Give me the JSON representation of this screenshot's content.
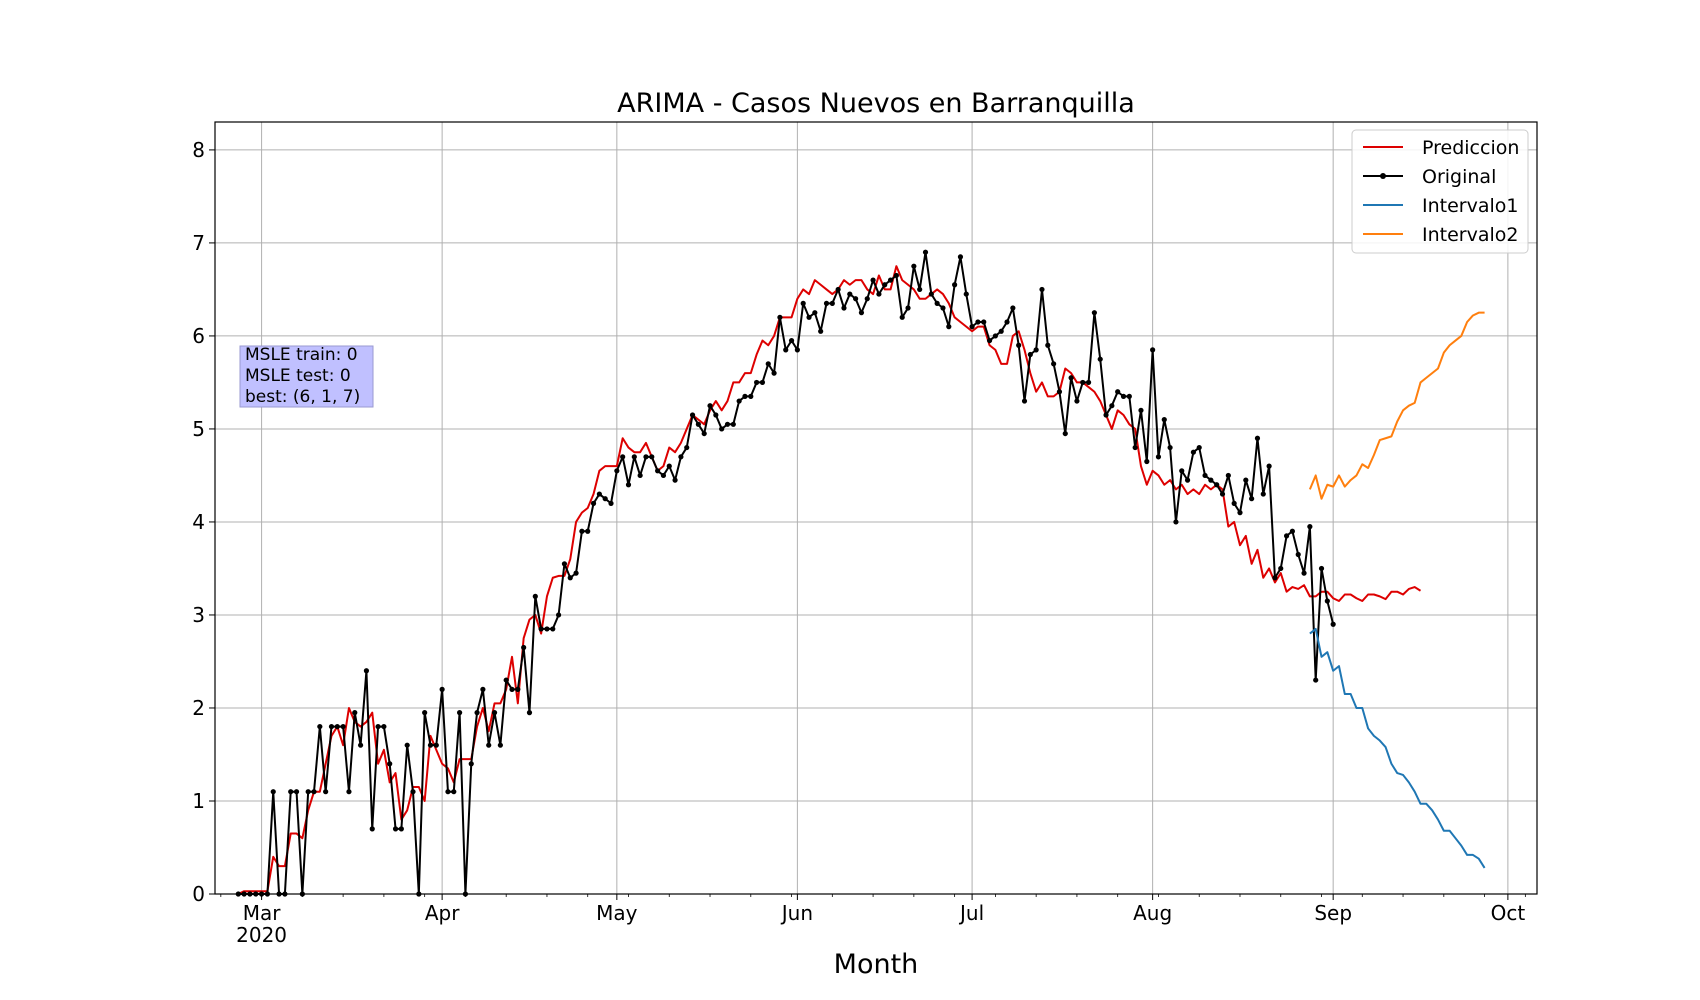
{
  "chart_data": {
    "type": "line",
    "title": "ARIMA - Casos Nuevos en Barranquilla",
    "xlabel": "Month",
    "ylabel": "",
    "x_start_date": "2020-02-26",
    "xlim": [
      "2020-02-22",
      "2020-10-06"
    ],
    "ylim": [
      0,
      8.3
    ],
    "grid": true,
    "legend_position": "top-right",
    "x_ticks": [
      {
        "date": "2020-03-01",
        "label": "Mar",
        "sublabel": "2020"
      },
      {
        "date": "2020-04-01",
        "label": "Apr",
        "sublabel": ""
      },
      {
        "date": "2020-05-01",
        "label": "May",
        "sublabel": ""
      },
      {
        "date": "2020-06-01",
        "label": "Jun",
        "sublabel": ""
      },
      {
        "date": "2020-07-01",
        "label": "Jul",
        "sublabel": ""
      },
      {
        "date": "2020-08-01",
        "label": "Aug",
        "sublabel": ""
      },
      {
        "date": "2020-09-01",
        "label": "Sep",
        "sublabel": ""
      },
      {
        "date": "2020-10-01",
        "label": "Oct",
        "sublabel": ""
      }
    ],
    "y_ticks": [
      0,
      1,
      2,
      3,
      4,
      5,
      6,
      7,
      8
    ],
    "annotation": {
      "lines": [
        "MSLE train: 0",
        "MSLE test: 0",
        "best: (6, 1, 7)"
      ],
      "background": "#c0c0ff"
    },
    "series": [
      {
        "name": "Prediccion",
        "color": "#dd0000",
        "marker": false,
        "x_start_date": "2020-02-26",
        "values": [
          0.0,
          0.03,
          0.03,
          0.03,
          0.03,
          0.03,
          0.4,
          0.3,
          0.3,
          0.65,
          0.65,
          0.6,
          0.9,
          1.1,
          1.1,
          1.4,
          1.7,
          1.8,
          1.6,
          2.0,
          1.85,
          1.8,
          1.85,
          1.95,
          1.4,
          1.55,
          1.2,
          1.3,
          0.8,
          0.9,
          1.15,
          1.15,
          1.0,
          1.7,
          1.55,
          1.4,
          1.35,
          1.2,
          1.45,
          1.45,
          1.45,
          1.8,
          2.0,
          1.75,
          2.05,
          2.05,
          2.2,
          2.55,
          2.05,
          2.75,
          2.95,
          3.0,
          2.8,
          3.2,
          3.4,
          3.42,
          3.42,
          3.6,
          4.0,
          4.1,
          4.15,
          4.3,
          4.55,
          4.6,
          4.6,
          4.6,
          4.9,
          4.8,
          4.75,
          4.75,
          4.85,
          4.7,
          4.55,
          4.6,
          4.8,
          4.75,
          4.85,
          5.0,
          5.15,
          5.1,
          5.05,
          5.2,
          5.3,
          5.2,
          5.3,
          5.5,
          5.5,
          5.6,
          5.6,
          5.8,
          5.95,
          5.9,
          6.0,
          6.2,
          6.2,
          6.2,
          6.4,
          6.5,
          6.45,
          6.6,
          6.55,
          6.5,
          6.45,
          6.5,
          6.6,
          6.55,
          6.6,
          6.6,
          6.5,
          6.45,
          6.65,
          6.5,
          6.5,
          6.75,
          6.6,
          6.55,
          6.5,
          6.4,
          6.4,
          6.45,
          6.5,
          6.45,
          6.35,
          6.2,
          6.15,
          6.1,
          6.05,
          6.1,
          6.1,
          5.9,
          5.85,
          5.7,
          5.7,
          6.0,
          6.05,
          5.85,
          5.6,
          5.4,
          5.5,
          5.35,
          5.35,
          5.4,
          5.65,
          5.6,
          5.5,
          5.5,
          5.45,
          5.4,
          5.3,
          5.15,
          5.0,
          5.2,
          5.15,
          5.05,
          5.0,
          4.6,
          4.4,
          4.55,
          4.5,
          4.4,
          4.45,
          4.35,
          4.4,
          4.3,
          4.35,
          4.3,
          4.4,
          4.35,
          4.4,
          4.35,
          3.95,
          4.0,
          3.75,
          3.85,
          3.55,
          3.7,
          3.4,
          3.5,
          3.35,
          3.45,
          3.25,
          3.3,
          3.28,
          3.32,
          3.2,
          3.2,
          3.25,
          3.25,
          3.18,
          3.15,
          3.22,
          3.22,
          3.18,
          3.15,
          3.22,
          3.22,
          3.2,
          3.17,
          3.25,
          3.25,
          3.22,
          3.28,
          3.3,
          3.26
        ]
      },
      {
        "name": "Original",
        "color": "#000000",
        "marker": true,
        "x_start_date": "2020-02-26",
        "values": [
          0.0,
          0.0,
          0.0,
          0.0,
          0.0,
          0.0,
          1.1,
          0.0,
          0.0,
          1.1,
          1.1,
          0.0,
          1.1,
          1.1,
          1.8,
          1.1,
          1.8,
          1.8,
          1.8,
          1.1,
          1.95,
          1.6,
          2.4,
          0.7,
          1.8,
          1.8,
          1.4,
          0.7,
          0.7,
          1.6,
          1.1,
          0.0,
          1.95,
          1.6,
          1.6,
          2.2,
          1.1,
          1.1,
          1.95,
          0.0,
          1.4,
          1.95,
          2.2,
          1.6,
          1.95,
          1.6,
          2.3,
          2.2,
          2.2,
          2.65,
          1.95,
          3.2,
          2.85,
          2.85,
          2.85,
          3.0,
          3.55,
          3.4,
          3.45,
          3.9,
          3.9,
          4.2,
          4.3,
          4.25,
          4.2,
          4.55,
          4.7,
          4.4,
          4.7,
          4.5,
          4.7,
          4.7,
          4.55,
          4.5,
          4.6,
          4.45,
          4.7,
          4.8,
          5.15,
          5.05,
          4.95,
          5.25,
          5.15,
          5.0,
          5.05,
          5.05,
          5.3,
          5.35,
          5.35,
          5.5,
          5.5,
          5.7,
          5.6,
          6.2,
          5.85,
          5.95,
          5.85,
          6.35,
          6.2,
          6.25,
          6.05,
          6.35,
          6.35,
          6.5,
          6.3,
          6.45,
          6.4,
          6.25,
          6.4,
          6.6,
          6.45,
          6.55,
          6.6,
          6.65,
          6.2,
          6.3,
          6.75,
          6.5,
          6.9,
          6.45,
          6.35,
          6.3,
          6.1,
          6.55,
          6.85,
          6.45,
          6.1,
          6.15,
          6.15,
          5.95,
          6.0,
          6.05,
          6.15,
          6.3,
          5.9,
          5.3,
          5.8,
          5.85,
          6.5,
          5.9,
          5.7,
          5.4,
          4.95,
          5.55,
          5.3,
          5.5,
          5.5,
          6.25,
          5.75,
          5.15,
          5.25,
          5.4,
          5.35,
          5.35,
          4.8,
          5.2,
          4.65,
          5.85,
          4.7,
          5.1,
          4.8,
          4.0,
          4.55,
          4.45,
          4.75,
          4.8,
          4.5,
          4.45,
          4.4,
          4.3,
          4.5,
          4.2,
          4.1,
          4.45,
          4.25,
          4.9,
          4.3,
          4.6,
          3.4,
          3.5,
          3.85,
          3.9,
          3.65,
          3.45,
          3.95,
          2.3,
          3.5,
          3.15,
          2.9
        ]
      },
      {
        "name": "Intervalo1",
        "color": "#1f77b4",
        "marker": false,
        "x_start_date": "2020-08-28",
        "values": [
          2.8,
          2.85,
          2.55,
          2.6,
          2.4,
          2.45,
          2.15,
          2.15,
          2.0,
          2.0,
          1.78,
          1.7,
          1.65,
          1.58,
          1.4,
          1.3,
          1.28,
          1.2,
          1.1,
          0.97,
          0.97,
          0.9,
          0.8,
          0.68,
          0.68,
          0.6,
          0.52,
          0.42,
          0.42,
          0.38,
          0.28
        ]
      },
      {
        "name": "Intervalo2",
        "color": "#ff7f0e",
        "marker": false,
        "x_start_date": "2020-08-28",
        "values": [
          4.35,
          4.5,
          4.25,
          4.4,
          4.38,
          4.5,
          4.38,
          4.45,
          4.5,
          4.62,
          4.58,
          4.72,
          4.88,
          4.9,
          4.92,
          5.08,
          5.2,
          5.25,
          5.28,
          5.5,
          5.55,
          5.6,
          5.65,
          5.82,
          5.9,
          5.95,
          6.0,
          6.15,
          6.22,
          6.25,
          6.25
        ]
      }
    ]
  }
}
